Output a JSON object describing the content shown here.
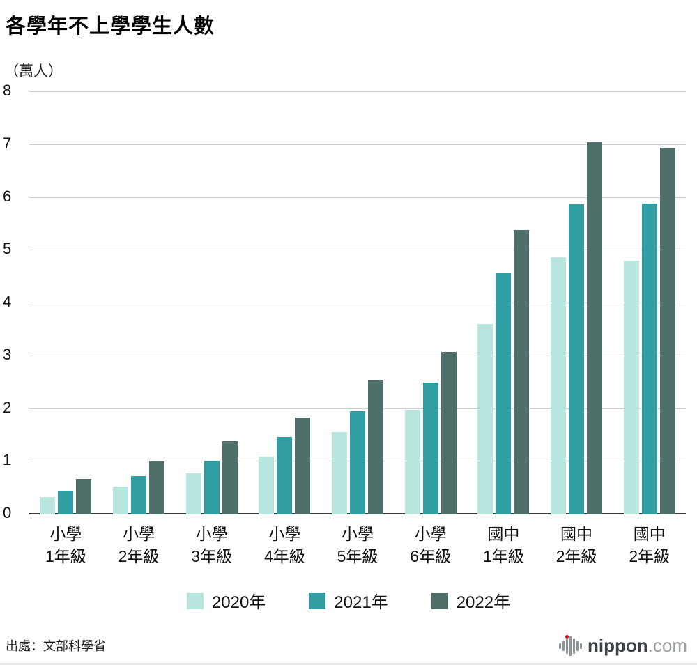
{
  "title": "各學年不上學學生人數",
  "unit_label": "（萬人）",
  "source": "出處：文部科學省",
  "logo": {
    "brand": "nippon",
    "tld": ".com"
  },
  "chart_data": {
    "type": "bar",
    "title": "各學年不上學學生人數",
    "ylabel": "（萬人）",
    "xlabel": "",
    "ylim": [
      0,
      8
    ],
    "yticks": [
      0,
      1,
      2,
      3,
      4,
      5,
      6,
      7,
      8
    ],
    "grid": true,
    "legend_position": "bottom",
    "categories": [
      "小學\n1年級",
      "小學\n2年級",
      "小學\n3年級",
      "小學\n4年級",
      "小學\n5年級",
      "小學\n6年級",
      "國中\n1年級",
      "國中\n2年級",
      "國中\n2年級"
    ],
    "series": [
      {
        "name": "2020年",
        "color": "#b9e5df",
        "values": [
          0.33,
          0.53,
          0.78,
          1.1,
          1.56,
          1.98,
          3.6,
          4.87,
          4.8
        ]
      },
      {
        "name": "2021年",
        "color": "#2f9da1",
        "values": [
          0.45,
          0.72,
          1.02,
          1.46,
          1.96,
          2.5,
          4.57,
          5.88,
          5.89
        ]
      },
      {
        "name": "2022年",
        "color": "#4f6f6b",
        "values": [
          0.67,
          1.0,
          1.38,
          1.83,
          2.55,
          3.08,
          5.38,
          7.05,
          6.95
        ]
      }
    ]
  }
}
